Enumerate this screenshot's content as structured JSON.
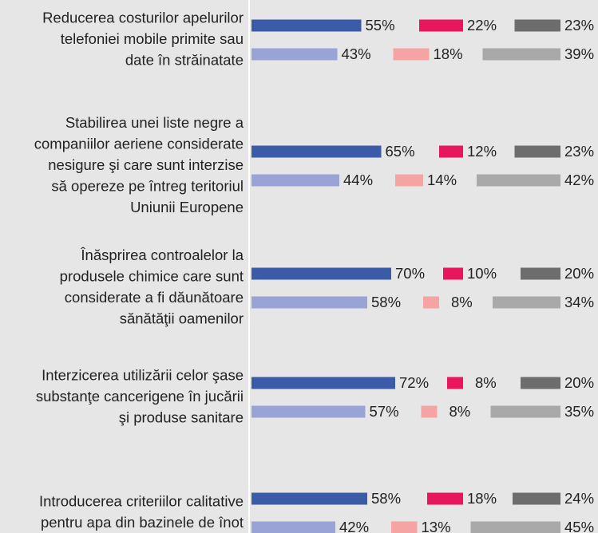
{
  "chart_data": {
    "type": "bar",
    "categories": [
      [
        "Reducerea costurilor apelurilor",
        "telefoniei mobile primite sau",
        "date în străinatate"
      ],
      [
        "Stabilirea unei liste negre a",
        "companiilor aeriene considerate",
        "nesigure şi care sunt interzise",
        "să opereze pe întreg teritoriul",
        "Uniunii Europene"
      ],
      [
        "Înăsprirea controalelor la",
        "produsele chimice care sunt",
        "considerate a fi dăunătoare",
        "sănătăţii oamenilor"
      ],
      [
        "Interzicerea utilizării celor şase",
        "substanţe cancerigene în jucării",
        "şi produse sanitare"
      ],
      [
        "Introducerea criteriilor calitative",
        "pentru apa din bazinele de înot"
      ]
    ],
    "series": [
      {
        "color": "#3b5ba9",
        "values": [
          55,
          65,
          70,
          72,
          58
        ],
        "value_labels": [
          "55%",
          "65%",
          "70%",
          "72%",
          "58%"
        ]
      },
      {
        "color": "#e8175d",
        "values": [
          22,
          12,
          10,
          8,
          18
        ],
        "value_labels": [
          "22%",
          "12%",
          "10%",
          "8%",
          "18%"
        ]
      },
      {
        "color": "#6d6d6d",
        "values": [
          23,
          23,
          20,
          20,
          24
        ],
        "value_labels": [
          "23%",
          "23%",
          "20%",
          "20%",
          "24%"
        ]
      },
      {
        "color": "#99a3d6",
        "values": [
          43,
          44,
          58,
          57,
          42
        ],
        "value_labels": [
          "43%",
          "44%",
          "58%",
          "57%",
          "42%"
        ]
      },
      {
        "color": "#f5a3a3",
        "values": [
          18,
          14,
          8,
          8,
          13
        ],
        "value_labels": [
          "18%",
          "14%",
          "8%",
          "8%",
          "13%"
        ]
      },
      {
        "color": "#a9a9a9",
        "values": [
          39,
          42,
          34,
          35,
          45
        ],
        "value_labels": [
          "39%",
          "42%",
          "34%",
          "35%",
          "45%"
        ]
      }
    ]
  }
}
